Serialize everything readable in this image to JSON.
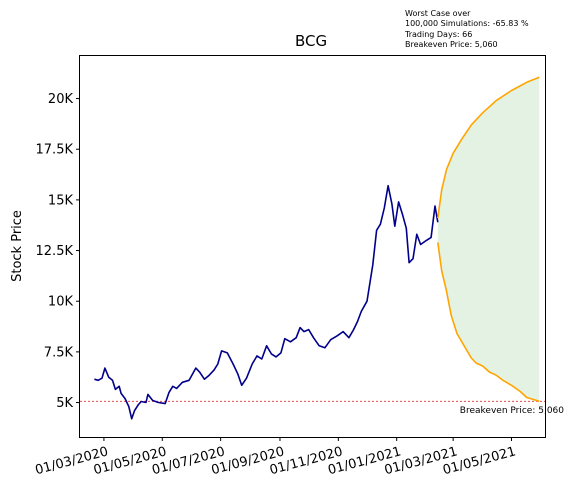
{
  "chart_data": {
    "type": "line",
    "title": "BCG",
    "ylabel": "Stock Price",
    "xlabel": "",
    "x_ticks": [
      "01/03/2020",
      "01/05/2020",
      "01/07/2020",
      "01/09/2020",
      "01/11/2020",
      "01/01/2021",
      "01/03/2021",
      "01/05/2021"
    ],
    "y_ticks": [
      5000,
      7500,
      10000,
      12500,
      15000,
      17500,
      20000
    ],
    "y_tick_labels": [
      "5K",
      "7.5K",
      "10K",
      "12.5K",
      "15K",
      "17.5K",
      "20K"
    ],
    "xlim": [
      "2020-02-05",
      "2021-06-05"
    ],
    "ylim": [
      3300,
      22100
    ],
    "annotation_lines": [
      "Worst Case over",
      "100,000 Simulations: -65.83 %",
      "Trading Days: 66",
      "Breakeven Price: 5,060"
    ],
    "breakeven": {
      "value": 5060,
      "label": "Breakeven Price: 5,060",
      "color": "#e03030"
    },
    "colors": {
      "historical": "#00008b",
      "projection": "#ffa500",
      "band": "#d9eed9"
    },
    "series": [
      {
        "role": "historical",
        "points": [
          [
            "2020-02-20",
            6150
          ],
          [
            "2020-02-24",
            6100
          ],
          [
            "2020-02-28",
            6200
          ],
          [
            "2020-03-02",
            6700
          ],
          [
            "2020-03-06",
            6250
          ],
          [
            "2020-03-10",
            6100
          ],
          [
            "2020-03-13",
            5650
          ],
          [
            "2020-03-17",
            5800
          ],
          [
            "2020-03-19",
            5450
          ],
          [
            "2020-03-23",
            5200
          ],
          [
            "2020-03-25",
            5000
          ],
          [
            "2020-03-27",
            4800
          ],
          [
            "2020-03-30",
            4200
          ],
          [
            "2020-04-02",
            4600
          ],
          [
            "2020-04-06",
            4900
          ],
          [
            "2020-04-09",
            5050
          ],
          [
            "2020-04-14",
            5000
          ],
          [
            "2020-04-16",
            5400
          ],
          [
            "2020-04-21",
            5100
          ],
          [
            "2020-04-27",
            5000
          ],
          [
            "2020-05-04",
            4950
          ],
          [
            "2020-05-08",
            5500
          ],
          [
            "2020-05-12",
            5800
          ],
          [
            "2020-05-16",
            5700
          ],
          [
            "2020-05-22",
            6000
          ],
          [
            "2020-05-29",
            6100
          ],
          [
            "2020-06-05",
            6700
          ],
          [
            "2020-06-09",
            6500
          ],
          [
            "2020-06-14",
            6150
          ],
          [
            "2020-06-19",
            6350
          ],
          [
            "2020-06-24",
            6600
          ],
          [
            "2020-06-28",
            6900
          ],
          [
            "2020-07-02",
            7550
          ],
          [
            "2020-07-08",
            7450
          ],
          [
            "2020-07-14",
            6900
          ],
          [
            "2020-07-19",
            6400
          ],
          [
            "2020-07-23",
            5850
          ],
          [
            "2020-07-28",
            6200
          ],
          [
            "2020-08-03",
            6900
          ],
          [
            "2020-08-08",
            7300
          ],
          [
            "2020-08-13",
            7150
          ],
          [
            "2020-08-18",
            7800
          ],
          [
            "2020-08-23",
            7400
          ],
          [
            "2020-08-28",
            7250
          ],
          [
            "2020-09-02",
            7450
          ],
          [
            "2020-09-06",
            8150
          ],
          [
            "2020-09-12",
            8000
          ],
          [
            "2020-09-18",
            8200
          ],
          [
            "2020-09-22",
            8700
          ],
          [
            "2020-09-26",
            8500
          ],
          [
            "2020-10-01",
            8600
          ],
          [
            "2020-10-06",
            8200
          ],
          [
            "2020-10-12",
            7800
          ],
          [
            "2020-10-18",
            7700
          ],
          [
            "2020-10-24",
            8100
          ],
          [
            "2020-10-31",
            8300
          ],
          [
            "2020-11-06",
            8500
          ],
          [
            "2020-11-12",
            8200
          ],
          [
            "2020-11-17",
            8600
          ],
          [
            "2020-11-21",
            9000
          ],
          [
            "2020-11-25",
            9500
          ],
          [
            "2020-12-01",
            10000
          ],
          [
            "2020-12-07",
            11800
          ],
          [
            "2020-12-11",
            13500
          ],
          [
            "2020-12-15",
            13800
          ],
          [
            "2020-12-19",
            14600
          ],
          [
            "2020-12-23",
            15700
          ],
          [
            "2020-12-27",
            14800
          ],
          [
            "2020-12-30",
            13700
          ],
          [
            "2021-01-03",
            14900
          ],
          [
            "2021-01-07",
            14300
          ],
          [
            "2021-01-11",
            13600
          ],
          [
            "2021-01-14",
            11900
          ],
          [
            "2021-01-18",
            12100
          ],
          [
            "2021-01-22",
            13300
          ],
          [
            "2021-01-26",
            12800
          ],
          [
            "2021-02-01",
            13000
          ],
          [
            "2021-02-06",
            13150
          ],
          [
            "2021-02-10",
            14700
          ],
          [
            "2021-02-13",
            13900
          ]
        ]
      },
      {
        "role": "projection-upper",
        "points": [
          [
            "2021-02-13",
            14100
          ],
          [
            "2021-02-17",
            15500
          ],
          [
            "2021-02-22",
            16500
          ],
          [
            "2021-03-01",
            17300
          ],
          [
            "2021-03-10",
            18000
          ],
          [
            "2021-03-20",
            18700
          ],
          [
            "2021-04-01",
            19300
          ],
          [
            "2021-04-15",
            19900
          ],
          [
            "2021-05-01",
            20400
          ],
          [
            "2021-05-17",
            20800
          ],
          [
            "2021-05-30",
            21050
          ]
        ]
      },
      {
        "role": "projection-lower",
        "points": [
          [
            "2021-02-13",
            12900
          ],
          [
            "2021-02-17",
            11500
          ],
          [
            "2021-02-22",
            10500
          ],
          [
            "2021-02-27",
            9300
          ],
          [
            "2021-03-05",
            8400
          ],
          [
            "2021-03-10",
            8000
          ],
          [
            "2021-03-15",
            7600
          ],
          [
            "2021-03-20",
            7200
          ],
          [
            "2021-03-25",
            6950
          ],
          [
            "2021-04-01",
            6800
          ],
          [
            "2021-04-08",
            6500
          ],
          [
            "2021-04-15",
            6350
          ],
          [
            "2021-04-22",
            6100
          ],
          [
            "2021-05-01",
            5850
          ],
          [
            "2021-05-10",
            5550
          ],
          [
            "2021-05-17",
            5250
          ],
          [
            "2021-05-24",
            5150
          ],
          [
            "2021-05-30",
            5060
          ]
        ]
      }
    ]
  }
}
